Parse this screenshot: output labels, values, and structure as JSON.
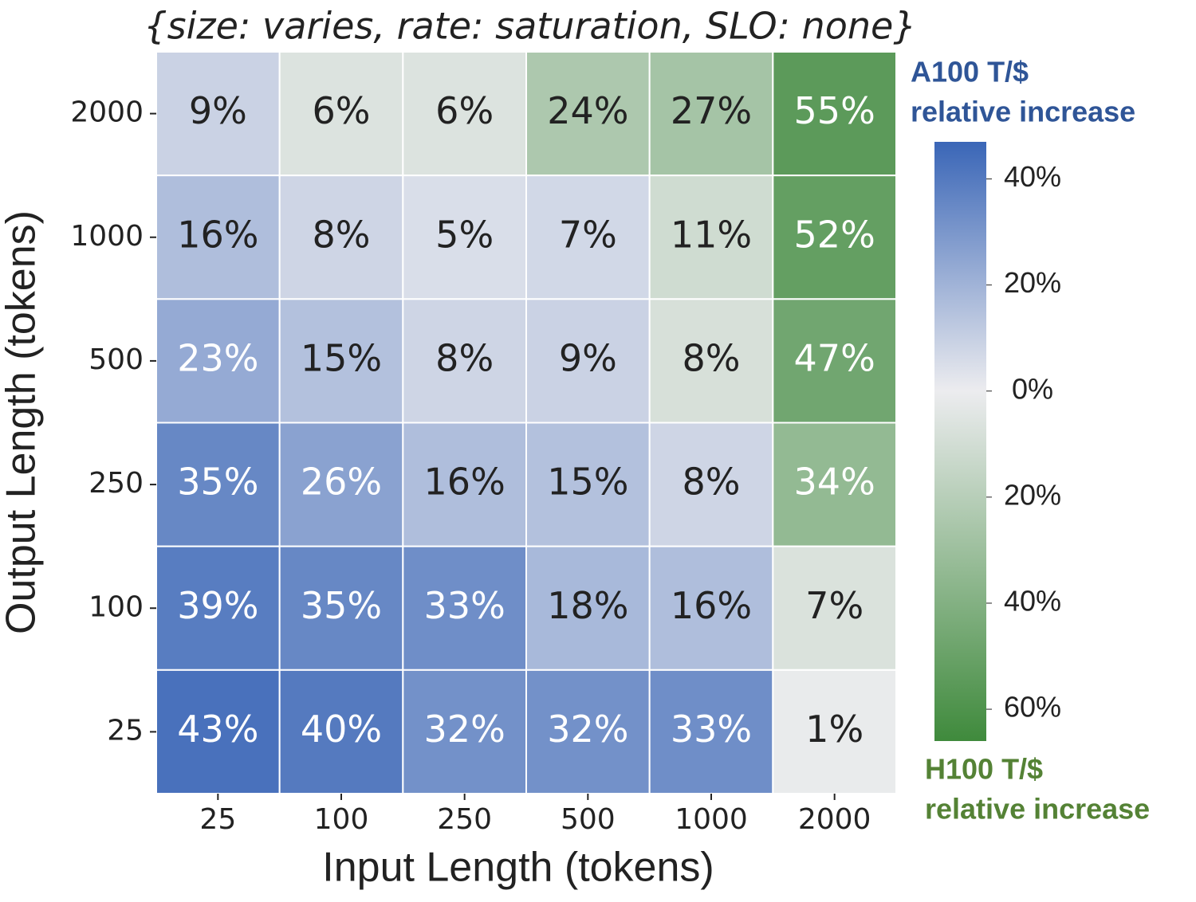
{
  "chart_data": {
    "type": "heatmap",
    "title": "{size: varies, rate: saturation, SLO: none}",
    "x_label": "Input Length (tokens)",
    "y_label": "Output Length (tokens)",
    "x_categories": [
      "25",
      "100",
      "250",
      "500",
      "1000",
      "2000"
    ],
    "y_categories": [
      "2000",
      "1000",
      "500",
      "250",
      "100",
      "25"
    ],
    "values": [
      [
        9,
        -6,
        -6,
        -24,
        -27,
        -55
      ],
      [
        16,
        8,
        5,
        7,
        -11,
        -52
      ],
      [
        23,
        15,
        8,
        9,
        -8,
        -47
      ],
      [
        35,
        26,
        16,
        15,
        8,
        -34
      ],
      [
        39,
        35,
        33,
        18,
        16,
        -7
      ],
      [
        43,
        40,
        32,
        32,
        33,
        -1
      ]
    ],
    "value_labels": [
      [
        "9%",
        "6%",
        "6%",
        "24%",
        "27%",
        "55%"
      ],
      [
        "16%",
        "8%",
        "5%",
        "7%",
        "11%",
        "52%"
      ],
      [
        "23%",
        "15%",
        "8%",
        "9%",
        "8%",
        "47%"
      ],
      [
        "35%",
        "26%",
        "16%",
        "15%",
        "8%",
        "34%"
      ],
      [
        "39%",
        "35%",
        "33%",
        "18%",
        "16%",
        "7%"
      ],
      [
        "43%",
        "40%",
        "32%",
        "32%",
        "33%",
        "1%"
      ]
    ],
    "colors": {
      "positive": "#3a66b7",
      "zero": "#ececef",
      "negative": "#3f8a3c"
    },
    "clim": [
      -66,
      47
    ],
    "colorbar_ticks": [
      {
        "value": 40,
        "label": "40%"
      },
      {
        "value": 20,
        "label": "20%"
      },
      {
        "value": 0,
        "label": "0%"
      },
      {
        "value": -20,
        "label": "20%"
      },
      {
        "value": -40,
        "label": "40%"
      },
      {
        "value": -60,
        "label": "60%"
      }
    ],
    "colorbar_top_label": [
      "A100 T/$",
      "relative increase"
    ],
    "colorbar_bottom_label": [
      "H100 T/$",
      "relative increase"
    ]
  }
}
